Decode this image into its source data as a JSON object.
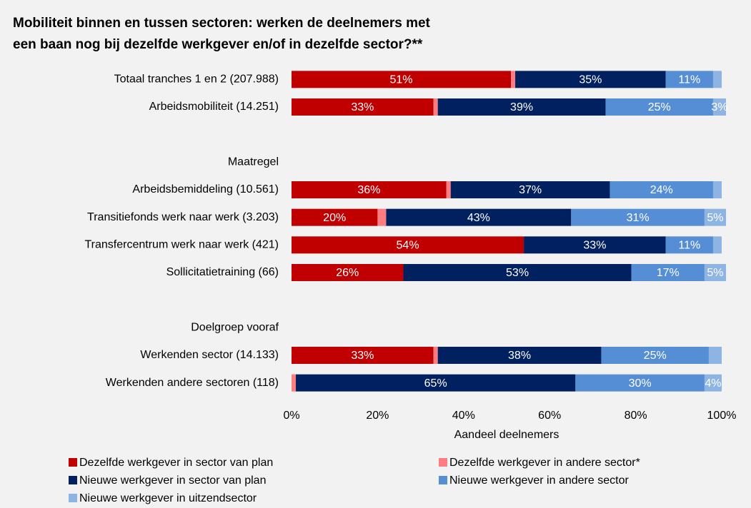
{
  "chart_data": {
    "type": "stacked_barh",
    "title": [
      "Mobiliteit binnen en tussen sectoren: werken de deelnemers met",
      "een baan nog bij dezelfde werkgever en/of in dezelfde sector?**"
    ],
    "xlabel": "Aandeel deelnemers",
    "categories": [
      "Totaal tranches 1 en 2 (207.988)",
      "Arbeidsmobiliteit (14.251)",
      null,
      "Maatregel",
      "Arbeidsbemiddeling (10.561)",
      "Transitiefonds werk naar werk (3.203)",
      "Transfercentrum werk naar werk (421)",
      "Sollicitatietraining (66)",
      null,
      "Doelgroep vooraf",
      "Werkenden sector (14.133)",
      "Werkenden andere sectoren (118)"
    ],
    "series": [
      {
        "name": "Dezelfde werkgever in sector van plan",
        "color": "#c00000",
        "values": [
          51,
          33,
          null,
          null,
          36,
          20,
          54,
          26,
          null,
          null,
          33,
          0
        ],
        "value_labels": [
          "51%",
          "33%",
          null,
          null,
          "36%",
          "20%",
          "54%",
          "26%",
          null,
          null,
          "33%",
          null
        ]
      },
      {
        "name": "Dezelfde werkgever in andere sector*",
        "color": "#ff7c80",
        "values": [
          1,
          1,
          null,
          null,
          1,
          2,
          0,
          0,
          null,
          null,
          1,
          1
        ],
        "value_labels": [
          null,
          null,
          null,
          null,
          null,
          null,
          null,
          null,
          null,
          null,
          null,
          null
        ]
      },
      {
        "name": "Nieuwe werkgever in sector van plan",
        "color": "#002060",
        "values": [
          35,
          39,
          null,
          null,
          37,
          43,
          33,
          53,
          null,
          null,
          38,
          65
        ],
        "value_labels": [
          "35%",
          "39%",
          null,
          null,
          "37%",
          "43%",
          "33%",
          "53%",
          null,
          null,
          "38%",
          "65%"
        ]
      },
      {
        "name": "Nieuwe werkgever in andere sector",
        "color": "#558ed5",
        "values": [
          11,
          25,
          null,
          null,
          24,
          31,
          11,
          17,
          null,
          null,
          25,
          30
        ],
        "value_labels": [
          "11%",
          "25%",
          null,
          null,
          "24%",
          "31%",
          "11%",
          "17%",
          null,
          null,
          "25%",
          "30%"
        ]
      },
      {
        "name": "Nieuwe werkgever in uitzendsector",
        "color": "#8db4e2",
        "values": [
          2,
          3,
          null,
          null,
          2,
          5,
          2,
          5,
          null,
          null,
          3,
          4
        ],
        "value_labels": [
          null,
          "3%",
          null,
          null,
          null,
          "5%",
          null,
          "5%",
          null,
          null,
          null,
          "4%"
        ]
      }
    ],
    "xlim": [
      0,
      100
    ],
    "xticks": [
      {
        "value": 0,
        "label": "0%"
      },
      {
        "value": 20,
        "label": "20%"
      },
      {
        "value": 40,
        "label": "40%"
      },
      {
        "value": 60,
        "label": "60%"
      },
      {
        "value": 80,
        "label": "80%"
      },
      {
        "value": 100,
        "label": "100%"
      }
    ],
    "legend": "bottom"
  }
}
